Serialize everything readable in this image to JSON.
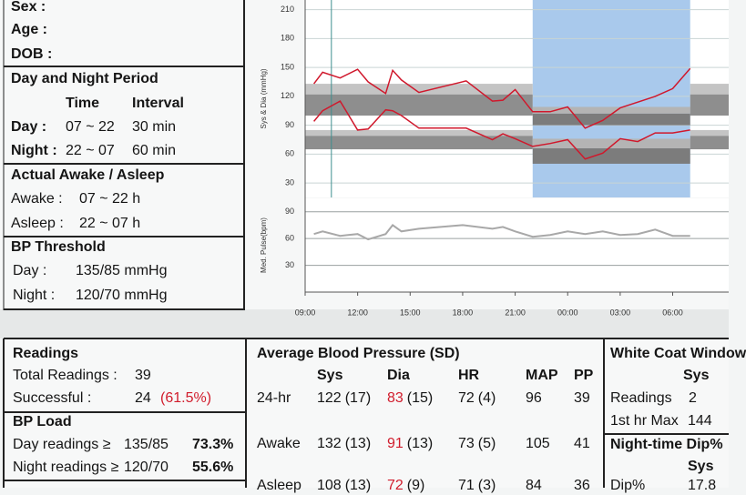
{
  "patient": {
    "sex": "Sex :",
    "age": "Age :",
    "dob": "DOB :"
  },
  "period": {
    "title": "Day and Night Period",
    "col_time": "Time",
    "col_interval": "Interval",
    "rows": [
      [
        "Day :",
        "07 ~ 22",
        "30 min"
      ],
      [
        "Night :",
        "22 ~ 07",
        "60 min"
      ]
    ]
  },
  "awake": {
    "title": "Actual Awake / Asleep",
    "rows": [
      [
        "Awake :",
        "07 ~ 22 h"
      ],
      [
        "Asleep :",
        "22 ~ 07 h"
      ]
    ]
  },
  "threshold": {
    "title": "BP Threshold",
    "rows": [
      [
        "Day :",
        "135/85 mmHg"
      ],
      [
        "Night :",
        "120/70 mmHg"
      ]
    ]
  },
  "readings": {
    "title": "Readings",
    "total_label": "Total Readings :",
    "total": 39,
    "success_label": "Successful :",
    "success": 24,
    "success_pct": "(61.5%)"
  },
  "load": {
    "title": "BP Load",
    "rows": [
      [
        "Day readings ≥",
        "135/85",
        "73.3%"
      ],
      [
        "Night readings ≥",
        "120/70",
        "55.6%"
      ]
    ]
  },
  "average": {
    "title": "Average Blood Pressure (SD)",
    "columns": [
      "Sys",
      "Dia",
      "HR",
      "MAP",
      "PP"
    ],
    "rows": [
      {
        "label": "24-hr",
        "cells": [
          [
            "122",
            "(17)"
          ],
          [
            "83",
            "(15)"
          ],
          [
            "72",
            "(4)"
          ],
          [
            "96"
          ],
          [
            "39"
          ]
        ]
      },
      {
        "label": "Awake",
        "cells": [
          [
            "132",
            "(13)"
          ],
          [
            "91",
            "(13)"
          ],
          [
            "73",
            "(5)"
          ],
          [
            "105"
          ],
          [
            "41"
          ]
        ]
      },
      {
        "label": "Asleep",
        "cells": [
          [
            "108",
            "(13)"
          ],
          [
            "72",
            "(9)"
          ],
          [
            "71",
            "(3)"
          ],
          [
            "84"
          ],
          [
            "36"
          ]
        ]
      }
    ]
  },
  "white_coat": {
    "title": "White Coat Window",
    "column": "Sys",
    "rows": [
      [
        "Readings",
        "2"
      ],
      [
        "1st hr Max",
        "144"
      ]
    ]
  },
  "dip": {
    "title": "Night-time Dip%",
    "column": "Sys",
    "rows": [
      [
        "Dip%",
        "17.8"
      ]
    ]
  },
  "chart_data": [
    {
      "type": "line",
      "ylabel": "Sys & Dia (mmHg)",
      "xlim": [
        9,
        33.2
      ],
      "ylim": [
        15,
        220
      ],
      "yticks": [
        30,
        60,
        90,
        120,
        150,
        180,
        210
      ],
      "grid": true,
      "night_band": [
        22,
        31
      ],
      "marker_x": 10.5,
      "bands": [
        {
          "x": [
            9,
            22
          ],
          "y": [
            122,
            133
          ],
          "color": "#c4c4c4"
        },
        {
          "x": [
            9,
            22
          ],
          "y": [
            100,
            122
          ],
          "color": "#8e8e8e"
        },
        {
          "x": [
            22,
            31
          ],
          "y": [
            102,
            109
          ],
          "color": "#b4b4b4"
        },
        {
          "x": [
            22,
            31
          ],
          "y": [
            90,
            102
          ],
          "color": "#7c7c7c"
        },
        {
          "x": [
            31,
            33.2
          ],
          "y": [
            122,
            133
          ],
          "color": "#c4c4c4"
        },
        {
          "x": [
            31,
            33.2
          ],
          "y": [
            100,
            122
          ],
          "color": "#8e8e8e"
        },
        {
          "x": [
            9,
            22
          ],
          "y": [
            79,
            85
          ],
          "color": "#c4c4c4"
        },
        {
          "x": [
            9,
            22
          ],
          "y": [
            65,
            79
          ],
          "color": "#8e8e8e"
        },
        {
          "x": [
            22,
            31
          ],
          "y": [
            66,
            76
          ],
          "color": "#b4b4b4"
        },
        {
          "x": [
            22,
            31
          ],
          "y": [
            50,
            66
          ],
          "color": "#7c7c7c"
        },
        {
          "x": [
            31,
            33.2
          ],
          "y": [
            79,
            85
          ],
          "color": "#c4c4c4"
        },
        {
          "x": [
            31,
            33.2
          ],
          "y": [
            65,
            79
          ],
          "color": "#8e8e8e"
        }
      ],
      "series": [
        {
          "color": "#d0182c",
          "x": [
            9.5,
            10,
            11,
            12,
            12.6,
            13.6,
            14,
            14.5,
            15.5,
            18.2,
            19.7,
            20.3,
            21,
            22,
            23,
            24,
            25,
            26,
            27,
            29,
            30,
            31
          ],
          "values": [
            133,
            145,
            139,
            148,
            135,
            123,
            147,
            137,
            124,
            136,
            115,
            116,
            127,
            104,
            104,
            109,
            87,
            95,
            108,
            120,
            128,
            149
          ]
        },
        {
          "color": "#d0182c",
          "x": [
            9.5,
            10,
            11,
            12,
            12.6,
            13.6,
            14,
            14.5,
            15.5,
            18.2,
            19.7,
            20.3,
            21,
            22,
            23,
            24,
            25,
            26,
            27,
            28,
            29,
            30,
            31
          ],
          "values": [
            94,
            105,
            115,
            85,
            86,
            106,
            105,
            100,
            87,
            87,
            75,
            81,
            76,
            68,
            71,
            75,
            55,
            61,
            76,
            73,
            82,
            82,
            85
          ]
        }
      ]
    },
    {
      "type": "line",
      "ylabel": "Med. Pulse(bpm)",
      "xlim": [
        9,
        33.2
      ],
      "ylim": [
        0,
        105
      ],
      "yticks": [
        30,
        60,
        90
      ],
      "grid": true,
      "xticks": [
        {
          "value": 9,
          "label": "09:00"
        },
        {
          "value": 12,
          "label": "12:00"
        },
        {
          "value": 15,
          "label": "15:00"
        },
        {
          "value": 18,
          "label": "18:00"
        },
        {
          "value": 21,
          "label": "21:00"
        },
        {
          "value": 24,
          "label": "00:00"
        },
        {
          "value": 27,
          "label": "03:00"
        },
        {
          "value": 30,
          "label": "06:00"
        }
      ],
      "series": [
        {
          "color": "#a8a8a8",
          "x": [
            9.5,
            10,
            11,
            12,
            12.6,
            13.6,
            14,
            14.5,
            15.5,
            18,
            19.7,
            20.3,
            21,
            22,
            23,
            24,
            25,
            26,
            27,
            28,
            29,
            30,
            31
          ],
          "values": [
            65,
            68,
            63,
            65,
            59,
            65,
            75,
            68,
            71,
            75,
            71,
            73,
            68,
            62,
            64,
            68,
            65,
            68,
            64,
            65,
            70,
            63,
            63
          ]
        }
      ]
    }
  ]
}
